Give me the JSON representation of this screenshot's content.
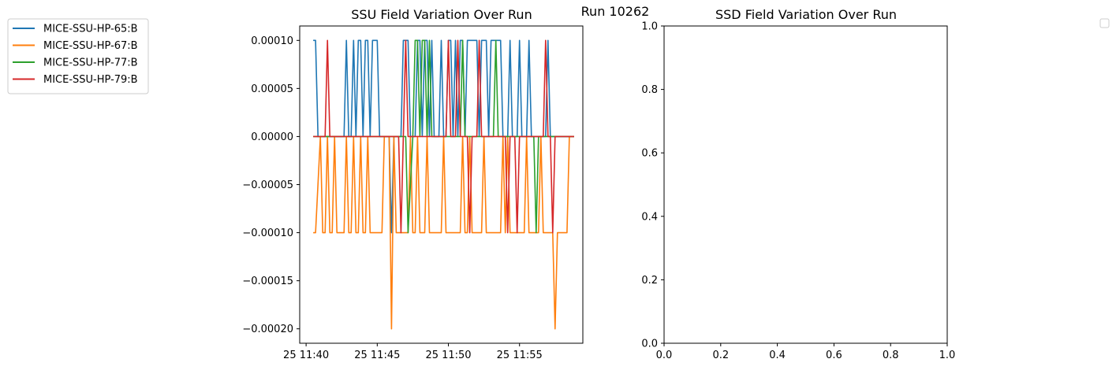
{
  "figure": {
    "suptitle": "Run 10262"
  },
  "chart_data": [
    {
      "type": "line",
      "title": "SSU Field Variation Over Run",
      "xlabel": "",
      "ylabel": "",
      "x_axis": {
        "kind": "time",
        "ticks": [
          {
            "t": "11:40",
            "label": "25 11:40"
          },
          {
            "t": "11:45",
            "label": "25 11:45"
          },
          {
            "t": "11:50",
            "label": "25 11:50"
          },
          {
            "t": "11:55",
            "label": "25 11:55"
          }
        ],
        "range": [
          "11:39:33",
          "11:59:27"
        ]
      },
      "y_axis": {
        "ticks": [
          {
            "v": 0.0001,
            "label": "0.00010"
          },
          {
            "v": 5e-05,
            "label": "0.00005"
          },
          {
            "v": 0,
            "label": "0.00000"
          },
          {
            "v": -5e-05,
            "label": "−0.00005"
          },
          {
            "v": -0.0001,
            "label": "−0.00010"
          },
          {
            "v": -0.00015,
            "label": "−0.00015"
          },
          {
            "v": -0.0002,
            "label": "−0.00020"
          }
        ],
        "range": [
          -0.000215,
          0.000115
        ]
      },
      "grid": false,
      "legend_position": "outside-top-left",
      "series": [
        {
          "name": "MICE-SSU-HP-65:B",
          "color": "#1f77b4",
          "points": [
            [
              "11:40:30",
              0.0001
            ],
            [
              "11:40:40",
              0.0001
            ],
            [
              "11:40:50",
              0
            ],
            [
              "11:41:00",
              0
            ],
            [
              "11:42:40",
              0
            ],
            [
              "11:42:50",
              0.0001
            ],
            [
              "11:43:00",
              0
            ],
            [
              "11:43:10",
              0
            ],
            [
              "11:43:20",
              0.0001
            ],
            [
              "11:43:30",
              0
            ],
            [
              "11:43:40",
              0.0001
            ],
            [
              "11:43:50",
              0.0001
            ],
            [
              "11:44:00",
              0
            ],
            [
              "11:44:10",
              0.0001
            ],
            [
              "11:44:20",
              0.0001
            ],
            [
              "11:44:30",
              0
            ],
            [
              "11:44:40",
              0.0001
            ],
            [
              "11:45:00",
              0.0001
            ],
            [
              "11:45:10",
              0
            ],
            [
              "11:45:50",
              0
            ],
            [
              "11:46:00",
              -0.0001
            ],
            [
              "11:46:10",
              0
            ],
            [
              "11:46:40",
              0
            ],
            [
              "11:46:50",
              0.0001
            ],
            [
              "11:47:10",
              0.0001
            ],
            [
              "11:47:20",
              0
            ],
            [
              "11:47:40",
              0
            ],
            [
              "11:47:50",
              0.0001
            ],
            [
              "11:48:00",
              0.0001
            ],
            [
              "11:48:10",
              0
            ],
            [
              "11:48:20",
              0.0001
            ],
            [
              "11:48:30",
              0.0001
            ],
            [
              "11:48:40",
              0
            ],
            [
              "11:48:50",
              0.0001
            ],
            [
              "11:49:00",
              0
            ],
            [
              "11:49:20",
              0
            ],
            [
              "11:49:30",
              0.0001
            ],
            [
              "11:49:40",
              0
            ],
            [
              "11:49:50",
              0
            ],
            [
              "11:50:00",
              0.0001
            ],
            [
              "11:50:10",
              0.0001
            ],
            [
              "11:50:20",
              0
            ],
            [
              "11:50:30",
              0.0001
            ],
            [
              "11:50:40",
              0
            ],
            [
              "11:50:50",
              0.0001
            ],
            [
              "11:51:00",
              0.0001
            ],
            [
              "11:51:10",
              0
            ],
            [
              "11:51:20",
              0.0001
            ],
            [
              "11:52:00",
              0.0001
            ],
            [
              "11:52:10",
              0
            ],
            [
              "11:52:20",
              0.0001
            ],
            [
              "11:52:40",
              0.0001
            ],
            [
              "11:52:50",
              0
            ],
            [
              "11:53:00",
              0.0001
            ],
            [
              "11:53:40",
              0.0001
            ],
            [
              "11:53:50",
              0
            ],
            [
              "11:54:10",
              0
            ],
            [
              "11:54:20",
              0.0001
            ],
            [
              "11:54:30",
              0
            ],
            [
              "11:54:50",
              0
            ],
            [
              "11:55:00",
              0.0001
            ],
            [
              "11:55:10",
              0
            ],
            [
              "11:55:30",
              0
            ],
            [
              "11:55:40",
              0.0001
            ],
            [
              "11:55:50",
              0
            ],
            [
              "11:56:50",
              0
            ],
            [
              "11:57:00",
              0.0001
            ],
            [
              "11:57:10",
              0
            ],
            [
              "11:58:50",
              0
            ]
          ]
        },
        {
          "name": "MICE-SSU-HP-67:B",
          "color": "#ff7f0e",
          "points": [
            [
              "11:40:30",
              -0.0001
            ],
            [
              "11:40:40",
              -0.0001
            ],
            [
              "11:41:00",
              0
            ],
            [
              "11:41:10",
              -0.0001
            ],
            [
              "11:41:20",
              -0.0001
            ],
            [
              "11:41:30",
              0
            ],
            [
              "11:41:40",
              -0.0001
            ],
            [
              "11:41:50",
              -0.0001
            ],
            [
              "11:42:00",
              0
            ],
            [
              "11:42:10",
              -0.0001
            ],
            [
              "11:42:40",
              -0.0001
            ],
            [
              "11:42:50",
              0
            ],
            [
              "11:43:00",
              -0.0001
            ],
            [
              "11:43:10",
              -0.0001
            ],
            [
              "11:43:20",
              0
            ],
            [
              "11:43:30",
              -0.0001
            ],
            [
              "11:43:40",
              -0.0001
            ],
            [
              "11:43:50",
              0
            ],
            [
              "11:44:00",
              -0.0001
            ],
            [
              "11:44:10",
              -0.0001
            ],
            [
              "11:44:20",
              0
            ],
            [
              "11:44:30",
              -0.0001
            ],
            [
              "11:45:20",
              -0.0001
            ],
            [
              "11:45:30",
              0
            ],
            [
              "11:45:50",
              0
            ],
            [
              "11:46:00",
              -0.0002
            ],
            [
              "11:46:10",
              0
            ],
            [
              "11:46:20",
              -0.0001
            ],
            [
              "11:47:10",
              -0.0001
            ],
            [
              "11:47:20",
              0
            ],
            [
              "11:47:30",
              -0.0001
            ],
            [
              "11:47:40",
              -0.0001
            ],
            [
              "11:47:50",
              0
            ],
            [
              "11:48:00",
              -0.0001
            ],
            [
              "11:48:20",
              -0.0001
            ],
            [
              "11:48:30",
              0
            ],
            [
              "11:48:40",
              -0.0001
            ],
            [
              "11:49:30",
              -0.0001
            ],
            [
              "11:49:40",
              0
            ],
            [
              "11:49:50",
              -0.0001
            ],
            [
              "11:50:50",
              -0.0001
            ],
            [
              "11:51:00",
              0
            ],
            [
              "11:51:10",
              -0.0001
            ],
            [
              "11:51:20",
              -0.0001
            ],
            [
              "11:51:30",
              0
            ],
            [
              "11:51:40",
              -0.0001
            ],
            [
              "11:52:20",
              -0.0001
            ],
            [
              "11:52:30",
              0
            ],
            [
              "11:52:40",
              -0.0001
            ],
            [
              "11:53:40",
              -0.0001
            ],
            [
              "11:53:50",
              0
            ],
            [
              "11:54:00",
              -0.0001
            ],
            [
              "11:54:10",
              0
            ],
            [
              "11:54:20",
              -0.0001
            ],
            [
              "11:55:20",
              -0.0001
            ],
            [
              "11:55:30",
              0
            ],
            [
              "11:55:40",
              -0.0001
            ],
            [
              "11:56:20",
              -0.0001
            ],
            [
              "11:56:30",
              0
            ],
            [
              "11:56:40",
              -0.0001
            ],
            [
              "11:57:20",
              -0.0001
            ],
            [
              "11:57:30",
              -0.0002
            ],
            [
              "11:57:40",
              -0.0001
            ],
            [
              "11:58:10",
              -0.0001
            ],
            [
              "11:58:20",
              -0.0001
            ],
            [
              "11:58:30",
              0
            ],
            [
              "11:58:50",
              0
            ]
          ]
        },
        {
          "name": "MICE-SSU-HP-77:B",
          "color": "#2ca02c",
          "points": [
            [
              "11:40:30",
              0
            ],
            [
              "11:47:00",
              0
            ],
            [
              "11:47:10",
              -0.0001
            ],
            [
              "11:47:30",
              0
            ],
            [
              "11:47:40",
              0.0001
            ],
            [
              "11:47:50",
              0.0001
            ],
            [
              "11:48:00",
              0
            ],
            [
              "11:48:10",
              0.0001
            ],
            [
              "11:48:20",
              0.0001
            ],
            [
              "11:48:30",
              0
            ],
            [
              "11:48:40",
              0.0001
            ],
            [
              "11:48:50",
              0
            ],
            [
              "11:50:50",
              0
            ],
            [
              "11:51:00",
              0.0001
            ],
            [
              "11:51:10",
              0
            ],
            [
              "11:53:10",
              0
            ],
            [
              "11:53:20",
              0.0001
            ],
            [
              "11:53:30",
              0
            ],
            [
              "11:56:00",
              0
            ],
            [
              "11:56:10",
              -0.0001
            ],
            [
              "11:56:20",
              0
            ],
            [
              "11:58:50",
              0
            ]
          ]
        },
        {
          "name": "MICE-SSU-HP-79:B",
          "color": "#d62728",
          "points": [
            [
              "11:40:30",
              0
            ],
            [
              "11:41:20",
              0
            ],
            [
              "11:41:30",
              0.0001
            ],
            [
              "11:41:40",
              0
            ],
            [
              "11:46:30",
              0
            ],
            [
              "11:46:40",
              -0.0001
            ],
            [
              "11:46:50",
              0
            ],
            [
              "11:47:00",
              0.0001
            ],
            [
              "11:47:10",
              0
            ],
            [
              "11:49:50",
              0
            ],
            [
              "11:50:00",
              0.0001
            ],
            [
              "11:50:10",
              0
            ],
            [
              "11:50:30",
              0
            ],
            [
              "11:50:40",
              0.0001
            ],
            [
              "11:50:50",
              0
            ],
            [
              "11:51:20",
              0
            ],
            [
              "11:51:30",
              -0.0001
            ],
            [
              "11:51:40",
              0
            ],
            [
              "11:52:00",
              0
            ],
            [
              "11:52:10",
              0.0001
            ],
            [
              "11:52:20",
              0
            ],
            [
              "11:54:00",
              0
            ],
            [
              "11:54:10",
              -0.0001
            ],
            [
              "11:54:20",
              0
            ],
            [
              "11:54:40",
              0
            ],
            [
              "11:54:50",
              -0.0001
            ],
            [
              "11:55:00",
              0
            ],
            [
              "11:56:40",
              0
            ],
            [
              "11:56:50",
              0.0001
            ],
            [
              "11:57:00",
              0
            ],
            [
              "11:57:10",
              0
            ],
            [
              "11:57:20",
              -0.0001
            ],
            [
              "11:57:30",
              0
            ],
            [
              "11:58:50",
              0
            ]
          ]
        }
      ]
    },
    {
      "type": "line",
      "title": "SSD Field Variation Over Run",
      "xlabel": "",
      "ylabel": "",
      "x_axis": {
        "ticks": [
          {
            "v": 0,
            "label": "0.0"
          },
          {
            "v": 0.2,
            "label": "0.2"
          },
          {
            "v": 0.4,
            "label": "0.4"
          },
          {
            "v": 0.6,
            "label": "0.6"
          },
          {
            "v": 0.8,
            "label": "0.8"
          },
          {
            "v": 1,
            "label": "1.0"
          }
        ],
        "range": [
          0,
          1
        ]
      },
      "y_axis": {
        "ticks": [
          {
            "v": 0,
            "label": "0.0"
          },
          {
            "v": 0.2,
            "label": "0.2"
          },
          {
            "v": 0.4,
            "label": "0.4"
          },
          {
            "v": 0.6,
            "label": "0.6"
          },
          {
            "v": 0.8,
            "label": "0.8"
          },
          {
            "v": 1,
            "label": "1.0"
          }
        ],
        "range": [
          0,
          1
        ]
      },
      "grid": false,
      "legend_position": "outside-top-right",
      "series": []
    }
  ]
}
